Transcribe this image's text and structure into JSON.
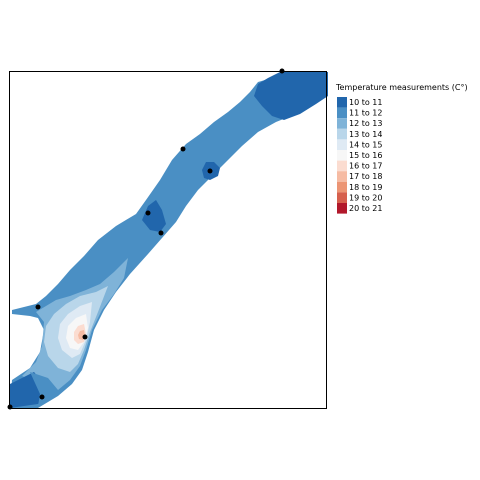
{
  "legend": {
    "title": "Temperature measurements (C°)",
    "items": [
      {
        "label": "10 to 11",
        "color": "#2166ac"
      },
      {
        "label": "11 to 12",
        "color": "#4a8fc4"
      },
      {
        "label": "12 to 13",
        "color": "#7fb3d8"
      },
      {
        "label": "13 to 14",
        "color": "#b9d6ea"
      },
      {
        "label": "14 to 15",
        "color": "#dfeaf4"
      },
      {
        "label": "15 to 16",
        "color": "#f7f7f7"
      },
      {
        "label": "16 to 17",
        "color": "#fbdcd0"
      },
      {
        "label": "17 to 18",
        "color": "#f6bba3"
      },
      {
        "label": "18 to 19",
        "color": "#ec9574"
      },
      {
        "label": "19 to 20",
        "color": "#d6604d"
      },
      {
        "label": "20 to 21",
        "color": "#b2182b"
      }
    ]
  },
  "colors": {
    "station_point": "#000000",
    "frame": "#000000",
    "background": "#ffffff"
  },
  "map": {
    "stations_count": 9
  }
}
